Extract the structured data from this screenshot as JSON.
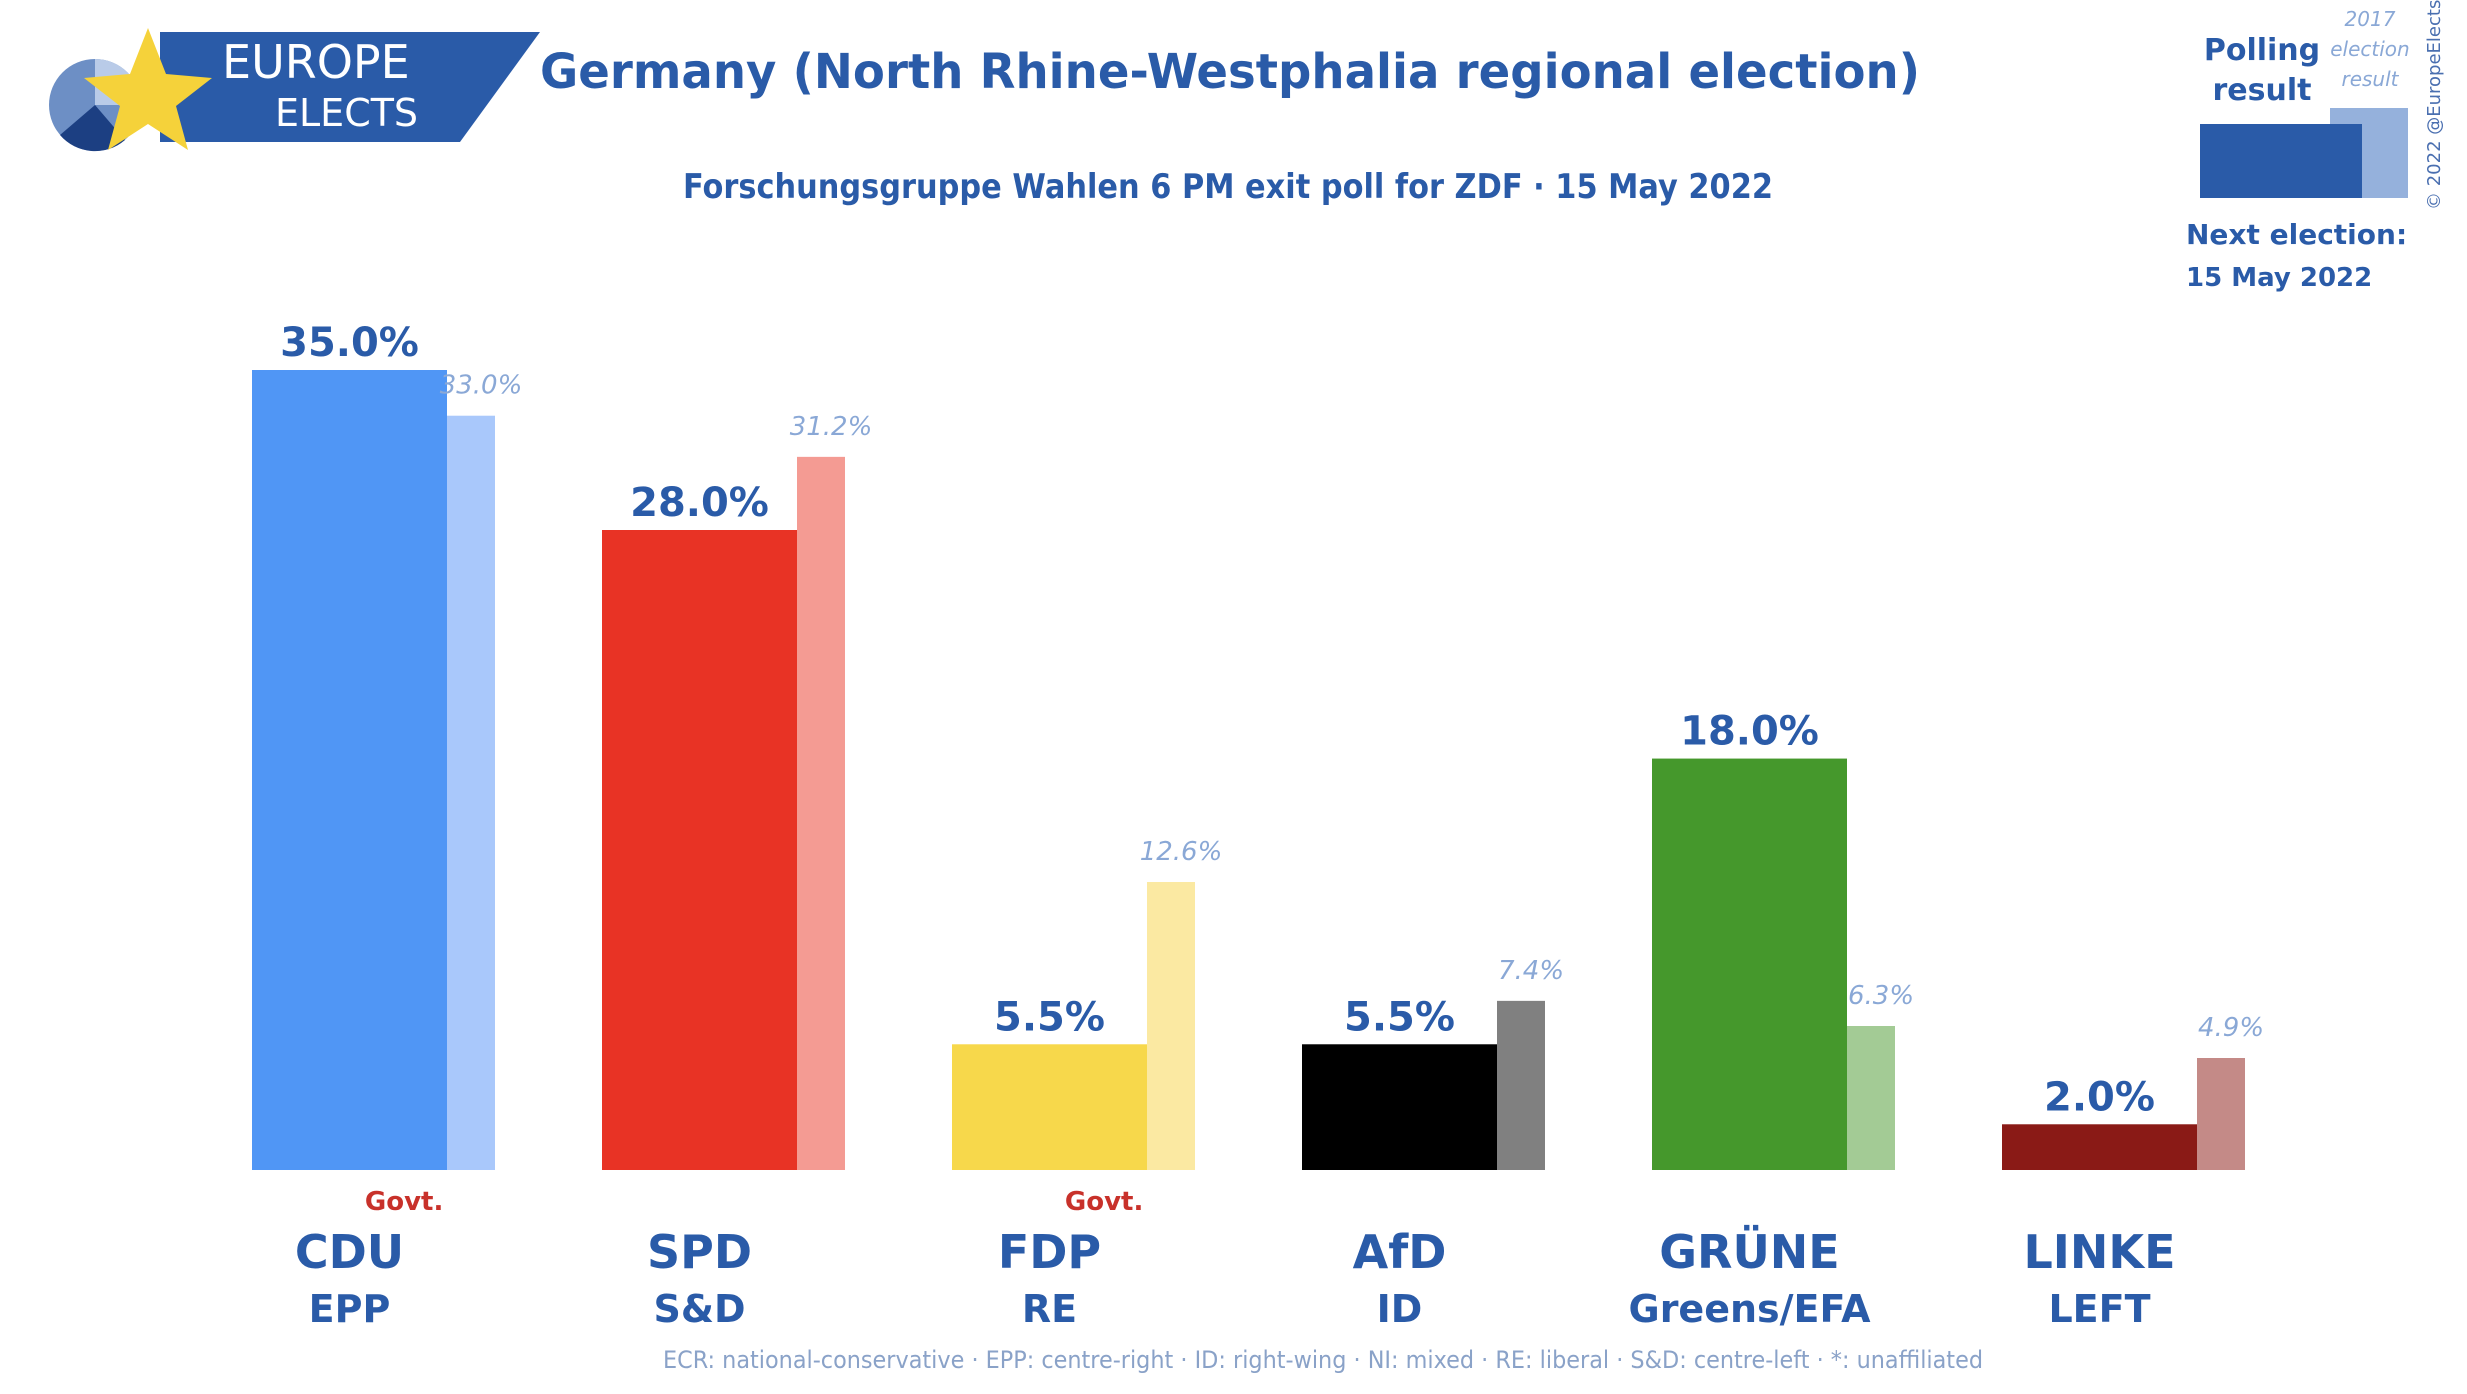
{
  "header": {
    "logo_line1": "EUROPE",
    "logo_line2": "ELECTS",
    "title": "Germany (North Rhine-Westphalia regional election)",
    "subtitle": "Forschungsgruppe Wahlen 6 PM exit poll for ZDF · 15 May 2022"
  },
  "legend": {
    "polling_line1": "Polling",
    "polling_line2": "result",
    "prev_line1": "2017",
    "prev_line2": "election",
    "prev_line3": "result",
    "next_election_label": "Next election:",
    "next_election_date": "15 May 2022",
    "copyright": "© 2022 @EuropeElects",
    "poll_color": "#2a5ba8",
    "prev_color": "#95b1dc"
  },
  "chart_data": {
    "type": "bar",
    "title": "Germany (North Rhine-Westphalia regional election)",
    "subtitle": "Forschungsgruppe Wahlen 6 PM exit poll for ZDF · 15 May 2022",
    "categories": [
      "CDU",
      "SPD",
      "FDP",
      "AfD",
      "GRÜNE",
      "LINKE"
    ],
    "groups": [
      "EPP",
      "S&D",
      "RE",
      "ID",
      "Greens/EFA",
      "LEFT"
    ],
    "series": [
      {
        "name": "Polling result",
        "values": [
          35.0,
          28.0,
          5.5,
          5.5,
          18.0,
          2.0
        ]
      },
      {
        "name": "2017 election result",
        "values": [
          33.0,
          31.2,
          12.6,
          7.4,
          6.3,
          4.9
        ]
      }
    ],
    "labels_poll": [
      "35.0%",
      "28.0%",
      "5.5%",
      "5.5%",
      "18.0%",
      "2.0%"
    ],
    "labels_prev": [
      "33.0%",
      "31.2%",
      "12.6%",
      "7.4%",
      "6.3%",
      "4.9%"
    ],
    "govt": [
      true,
      false,
      true,
      false,
      false,
      false
    ],
    "govt_label": "Govt.",
    "poll_colors": [
      "#5096f5",
      "#e83325",
      "#f7d84b",
      "#000000",
      "#45982c",
      "#8a1a16"
    ],
    "prev_colors": [
      "#a9c8fb",
      "#f49b93",
      "#fbe9a2",
      "#808080",
      "#a3cb95",
      "#c48a87"
    ],
    "ylim": [
      0,
      35
    ],
    "xlabel": "",
    "ylabel": "",
    "grid": false
  },
  "footer": {
    "note": "ECR: national-conservative · EPP: centre-right · ID: right-wing · NI: mixed · RE: liberal · S&D: centre-left · *: unaffiliated"
  }
}
